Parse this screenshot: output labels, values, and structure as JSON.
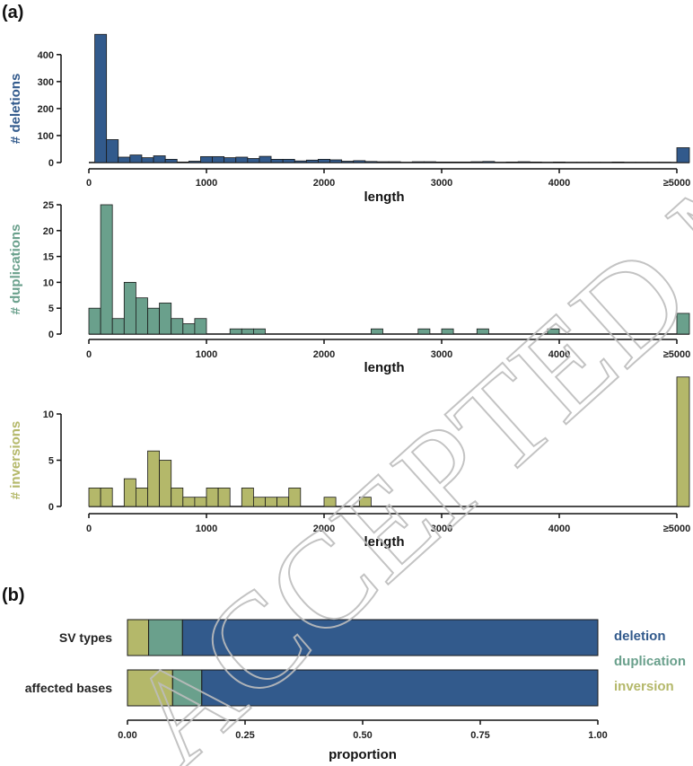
{
  "figure": {
    "panel_a_label": "(a)",
    "panel_b_label": "(b)",
    "watermark": "ACCEPTED MANUSCRIPT"
  },
  "colors": {
    "deletion": "#325a8c",
    "duplication": "#6aa08c",
    "inversion": "#b4b86a",
    "axis": "#111111"
  },
  "chart_data": [
    {
      "type": "bar",
      "name": "deletions-histogram",
      "ylabel": "# deletions",
      "xlabel": "length",
      "bin_width": 100,
      "bin_start": 50,
      "x_ticks": [
        "0",
        "1000",
        "2000",
        "3000",
        "4000",
        "≥5000"
      ],
      "x_tick_values": [
        0,
        1000,
        2000,
        3000,
        4000,
        5000
      ],
      "y_ticks": [
        0,
        100,
        200,
        300,
        400
      ],
      "ylim": [
        0,
        480
      ],
      "values": [
        475,
        85,
        20,
        28,
        18,
        25,
        12,
        2,
        5,
        22,
        22,
        18,
        20,
        15,
        23,
        12,
        12,
        6,
        9,
        12,
        10,
        5,
        7,
        4,
        3,
        3,
        1,
        3,
        3,
        2,
        2,
        2,
        3,
        4,
        1,
        2,
        3,
        2,
        1,
        2,
        1,
        1,
        1,
        1,
        2,
        1,
        1,
        1,
        1
      ],
      "overflow_label": "≥5000",
      "overflow_value": 55,
      "color_key": "deletion"
    },
    {
      "type": "bar",
      "name": "duplications-histogram",
      "ylabel": "# duplications",
      "xlabel": "length",
      "bin_width": 100,
      "bin_start": 0,
      "x_ticks": [
        "0",
        "1000",
        "2000",
        "3000",
        "4000",
        "≥5000"
      ],
      "x_tick_values": [
        0,
        1000,
        2000,
        3000,
        4000,
        5000
      ],
      "y_ticks": [
        0,
        5,
        10,
        15,
        20,
        25
      ],
      "ylim": [
        0,
        25
      ],
      "values": [
        5,
        25,
        3,
        10,
        7,
        5,
        6,
        3,
        2,
        3,
        0,
        0,
        1,
        1,
        1,
        0,
        0,
        0,
        0,
        0,
        0,
        0,
        0,
        0,
        1,
        0,
        0,
        0,
        1,
        0,
        1,
        0,
        0,
        1,
        0,
        0,
        0,
        0,
        0,
        1,
        0,
        0,
        0,
        0,
        0,
        0,
        0,
        0,
        0,
        0
      ],
      "overflow_label": "≥5000",
      "overflow_value": 4,
      "color_key": "duplication"
    },
    {
      "type": "bar",
      "name": "inversions-histogram",
      "ylabel": "# inversions",
      "xlabel": "length",
      "bin_width": 100,
      "bin_start": 0,
      "x_ticks": [
        "0",
        "1000",
        "2000",
        "3000",
        "4000",
        "≥5000"
      ],
      "x_tick_values": [
        0,
        1000,
        2000,
        3000,
        4000,
        5000
      ],
      "y_ticks": [
        0,
        5,
        10
      ],
      "ylim": [
        0,
        14
      ],
      "values": [
        2,
        2,
        0,
        3,
        2,
        6,
        5,
        2,
        1,
        1,
        2,
        2,
        0,
        2,
        1,
        1,
        1,
        2,
        0,
        0,
        1,
        0,
        0,
        1,
        0,
        0,
        0,
        0,
        0,
        0,
        0,
        0,
        0,
        0,
        0,
        0,
        0,
        0,
        0,
        0,
        0,
        0,
        0,
        0,
        0,
        0,
        0,
        0,
        0,
        0
      ],
      "overflow_label": "≥5000",
      "overflow_value": 14,
      "color_key": "inversion"
    },
    {
      "type": "bar",
      "name": "proportion-stacked-bar",
      "orientation": "horizontal",
      "stacked": true,
      "xlabel": "proportion",
      "xlim": [
        0,
        1
      ],
      "x_ticks": [
        "0.00",
        "0.25",
        "0.50",
        "0.75",
        "1.00"
      ],
      "x_tick_values": [
        0,
        0.25,
        0.5,
        0.75,
        1.0
      ],
      "categories": [
        "SV types",
        "affected bases"
      ],
      "series": [
        {
          "name": "inversion",
          "values": [
            0.045,
            0.096
          ]
        },
        {
          "name": "duplication",
          "values": [
            0.072,
            0.062
          ]
        },
        {
          "name": "deletion",
          "values": [
            0.883,
            0.842
          ]
        }
      ],
      "legend": [
        "deletion",
        "duplication",
        "inversion"
      ],
      "legend_position": "right"
    }
  ]
}
